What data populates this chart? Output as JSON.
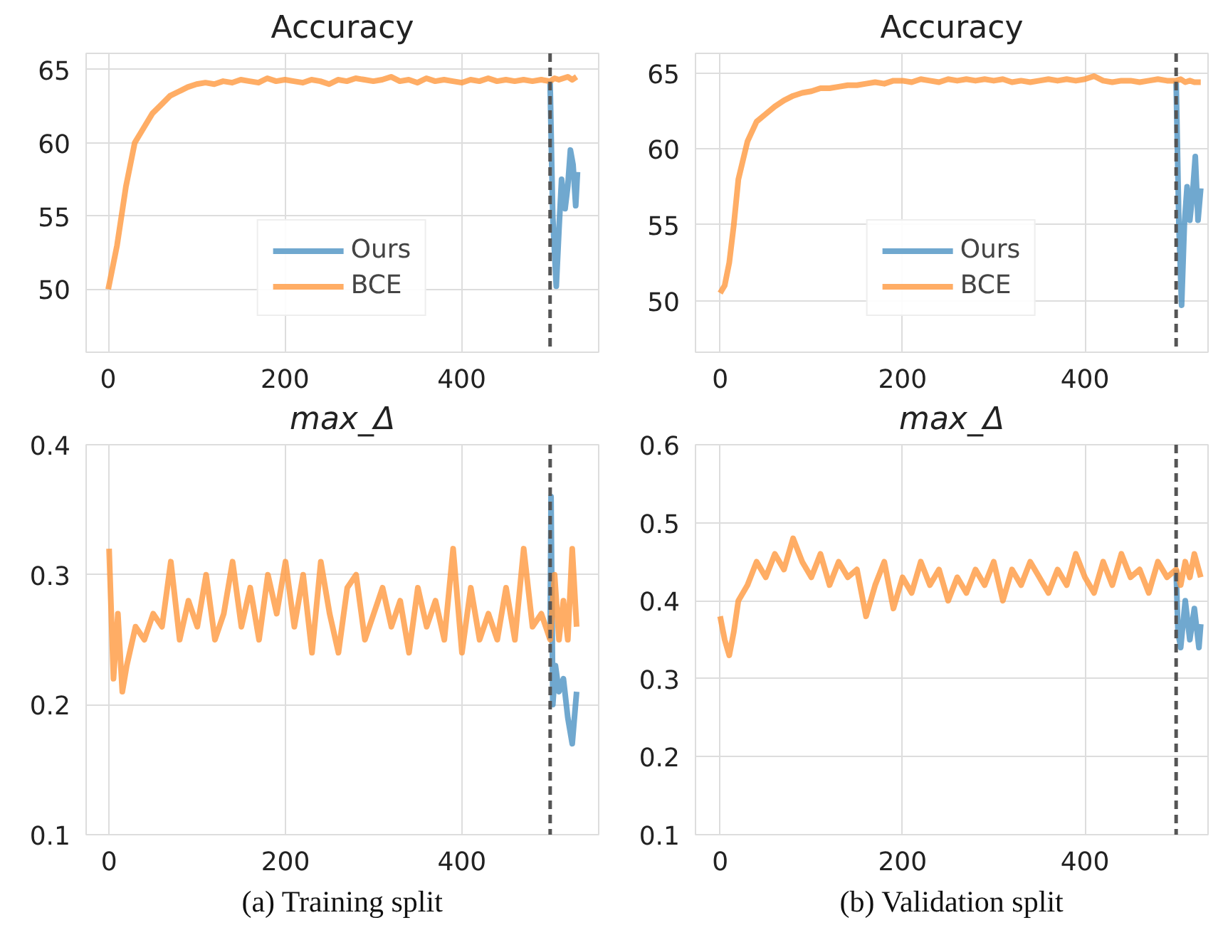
{
  "chart_data": [
    {
      "type": "line",
      "title": "Accuracy",
      "xlim": [
        -25,
        555
      ],
      "ylim": [
        45.7,
        66.1
      ],
      "xticks": [
        0,
        200,
        400
      ],
      "yticks": [
        50,
        55,
        60,
        65
      ],
      "grid": true,
      "legend": "bottom",
      "line_style": "solid",
      "marker": "none",
      "ref_lines": [
        {
          "axis": "x",
          "value": 500,
          "color": "#555555",
          "line_style": "dashed"
        }
      ],
      "series": [
        {
          "name": "Ours",
          "color": "#4c92c3",
          "x": [
            500,
            503,
            507,
            510,
            513,
            517,
            520,
            523,
            526,
            529,
            531
          ],
          "values": [
            64.2,
            55.0,
            50.2,
            54.0,
            57.5,
            55.5,
            57.0,
            59.5,
            58.5,
            55.7,
            58.0
          ]
        },
        {
          "name": "BCE",
          "color": "#ff993e",
          "x": [
            0,
            10,
            20,
            30,
            40,
            50,
            60,
            70,
            80,
            90,
            100,
            110,
            120,
            130,
            140,
            150,
            160,
            170,
            180,
            190,
            200,
            210,
            220,
            230,
            240,
            250,
            260,
            270,
            280,
            290,
            300,
            310,
            320,
            330,
            340,
            350,
            360,
            370,
            380,
            390,
            400,
            410,
            420,
            430,
            440,
            450,
            460,
            470,
            480,
            490,
            500,
            505,
            510,
            515,
            520,
            525,
            530
          ],
          "values": [
            50.0,
            53.0,
            57.0,
            60.0,
            61.0,
            62.0,
            62.6,
            63.2,
            63.5,
            63.8,
            64.0,
            64.1,
            64.0,
            64.2,
            64.1,
            64.3,
            64.2,
            64.1,
            64.4,
            64.2,
            64.3,
            64.2,
            64.1,
            64.3,
            64.2,
            64.0,
            64.3,
            64.2,
            64.4,
            64.3,
            64.2,
            64.3,
            64.5,
            64.2,
            64.3,
            64.1,
            64.4,
            64.2,
            64.3,
            64.2,
            64.1,
            64.3,
            64.2,
            64.4,
            64.2,
            64.3,
            64.2,
            64.3,
            64.2,
            64.3,
            64.2,
            64.4,
            64.3,
            64.4,
            64.5,
            64.3,
            64.5
          ]
        }
      ]
    },
    {
      "type": "line",
      "title": "Accuracy",
      "xlim": [
        -27,
        535
      ],
      "ylim": [
        46.6,
        66.3
      ],
      "xticks": [
        0,
        200,
        400
      ],
      "yticks": [
        50,
        55,
        60,
        65
      ],
      "grid": true,
      "legend": "bottom",
      "line_style": "solid",
      "marker": "none",
      "ref_lines": [
        {
          "axis": "x",
          "value": 500,
          "color": "#555555",
          "line_style": "dashed"
        }
      ],
      "series": [
        {
          "name": "Ours",
          "color": "#4c92c3",
          "x": [
            500,
            503,
            506,
            509,
            512,
            515,
            518,
            521,
            524,
            527
          ],
          "values": [
            64.5,
            55.0,
            49.7,
            55.0,
            57.5,
            55.3,
            57.0,
            59.5,
            55.3,
            57.4
          ]
        },
        {
          "name": "BCE",
          "color": "#ff993e",
          "x": [
            0,
            5,
            10,
            15,
            20,
            30,
            40,
            50,
            60,
            70,
            80,
            90,
            100,
            110,
            120,
            130,
            140,
            150,
            160,
            170,
            180,
            190,
            200,
            210,
            220,
            230,
            240,
            250,
            260,
            270,
            280,
            290,
            300,
            310,
            320,
            330,
            340,
            350,
            360,
            370,
            380,
            390,
            400,
            410,
            420,
            430,
            440,
            450,
            460,
            470,
            480,
            490,
            500,
            505,
            510,
            515,
            520,
            527
          ],
          "values": [
            50.5,
            51.0,
            52.5,
            55.0,
            58.0,
            60.5,
            61.8,
            62.3,
            62.8,
            63.2,
            63.5,
            63.7,
            63.8,
            64.0,
            64.0,
            64.1,
            64.2,
            64.2,
            64.3,
            64.4,
            64.3,
            64.5,
            64.5,
            64.4,
            64.6,
            64.5,
            64.4,
            64.6,
            64.5,
            64.6,
            64.5,
            64.6,
            64.5,
            64.6,
            64.4,
            64.5,
            64.4,
            64.5,
            64.6,
            64.5,
            64.6,
            64.5,
            64.6,
            64.8,
            64.5,
            64.4,
            64.5,
            64.5,
            64.4,
            64.5,
            64.6,
            64.5,
            64.5,
            64.6,
            64.4,
            64.5,
            64.4,
            64.4
          ]
        }
      ]
    },
    {
      "type": "line",
      "title": "max_Δ",
      "xlim": [
        -26,
        555
      ],
      "ylim": [
        0.1,
        0.4
      ],
      "xticks": [
        0,
        200,
        400
      ],
      "yticks": [
        0.1,
        0.2,
        0.3,
        0.4
      ],
      "grid": true,
      "line_style": "solid",
      "marker": "none",
      "annotations": [
        "(a) Training split"
      ],
      "ref_lines": [
        {
          "axis": "x",
          "value": 500,
          "color": "#555555",
          "line_style": "dashed"
        }
      ],
      "series": [
        {
          "color": "#4c92c3",
          "x": [
            500,
            501,
            503,
            506,
            510,
            515,
            520,
            525,
            530
          ],
          "values": [
            0.25,
            0.36,
            0.2,
            0.23,
            0.21,
            0.22,
            0.19,
            0.17,
            0.21
          ]
        },
        {
          "color": "#ff993e",
          "x": [
            0,
            5,
            10,
            15,
            20,
            30,
            40,
            50,
            60,
            70,
            80,
            90,
            100,
            110,
            120,
            130,
            140,
            150,
            160,
            170,
            180,
            190,
            200,
            210,
            220,
            230,
            240,
            250,
            260,
            270,
            280,
            290,
            300,
            310,
            320,
            330,
            340,
            350,
            360,
            370,
            380,
            390,
            400,
            410,
            420,
            430,
            440,
            450,
            460,
            470,
            480,
            490,
            500,
            505,
            510,
            515,
            520,
            525,
            530
          ],
          "values": [
            0.32,
            0.22,
            0.27,
            0.21,
            0.23,
            0.26,
            0.25,
            0.27,
            0.26,
            0.31,
            0.25,
            0.28,
            0.26,
            0.3,
            0.25,
            0.27,
            0.31,
            0.26,
            0.29,
            0.25,
            0.3,
            0.27,
            0.31,
            0.26,
            0.3,
            0.24,
            0.31,
            0.27,
            0.24,
            0.29,
            0.3,
            0.25,
            0.27,
            0.29,
            0.26,
            0.28,
            0.24,
            0.29,
            0.26,
            0.28,
            0.25,
            0.32,
            0.24,
            0.29,
            0.25,
            0.27,
            0.25,
            0.29,
            0.25,
            0.32,
            0.26,
            0.27,
            0.25,
            0.3,
            0.25,
            0.28,
            0.25,
            0.32,
            0.26
          ]
        }
      ]
    },
    {
      "type": "line",
      "title": "max_Δ",
      "xlim": [
        -27,
        535
      ],
      "ylim": [
        0.1,
        0.6
      ],
      "xticks": [
        0,
        200,
        400
      ],
      "yticks": [
        0.1,
        0.2,
        0.3,
        0.4,
        0.5,
        0.6
      ],
      "grid": true,
      "line_style": "solid",
      "marker": "none",
      "annotations": [
        "(b) Validation split"
      ],
      "ref_lines": [
        {
          "axis": "x",
          "value": 500,
          "color": "#555555",
          "line_style": "dashed"
        }
      ],
      "series": [
        {
          "color": "#4c92c3",
          "x": [
            500,
            502,
            505,
            510,
            515,
            520,
            525,
            527
          ],
          "values": [
            0.44,
            0.36,
            0.34,
            0.4,
            0.35,
            0.39,
            0.34,
            0.37
          ]
        },
        {
          "color": "#ff993e",
          "x": [
            0,
            5,
            10,
            15,
            20,
            30,
            40,
            50,
            60,
            70,
            80,
            90,
            100,
            110,
            120,
            130,
            140,
            150,
            160,
            170,
            180,
            190,
            200,
            210,
            220,
            230,
            240,
            250,
            260,
            270,
            280,
            290,
            300,
            310,
            320,
            330,
            340,
            350,
            360,
            370,
            380,
            390,
            400,
            410,
            420,
            430,
            440,
            450,
            460,
            470,
            480,
            490,
            500,
            505,
            510,
            515,
            520,
            527
          ],
          "values": [
            0.38,
            0.35,
            0.33,
            0.36,
            0.4,
            0.42,
            0.45,
            0.43,
            0.46,
            0.44,
            0.48,
            0.45,
            0.43,
            0.46,
            0.42,
            0.45,
            0.43,
            0.44,
            0.38,
            0.42,
            0.45,
            0.39,
            0.43,
            0.41,
            0.45,
            0.42,
            0.44,
            0.4,
            0.43,
            0.41,
            0.44,
            0.42,
            0.45,
            0.4,
            0.44,
            0.42,
            0.45,
            0.43,
            0.41,
            0.44,
            0.42,
            0.46,
            0.43,
            0.41,
            0.45,
            0.42,
            0.46,
            0.43,
            0.44,
            0.41,
            0.45,
            0.43,
            0.44,
            0.42,
            0.45,
            0.43,
            0.46,
            0.43
          ]
        }
      ]
    }
  ]
}
